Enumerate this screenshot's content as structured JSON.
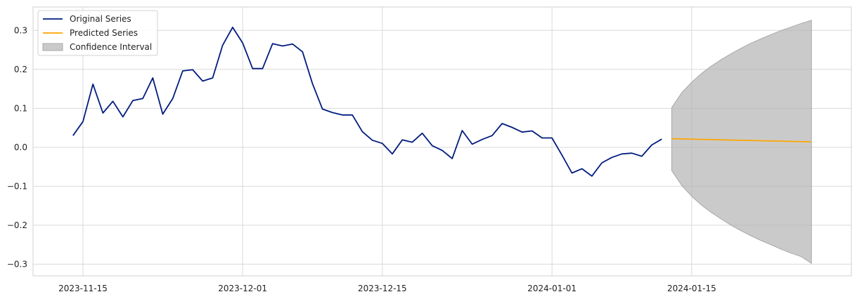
{
  "chart_data": {
    "type": "line",
    "title": "",
    "xlabel": "",
    "ylabel": "",
    "xlim": [
      "2023-11-10",
      "2024-01-31"
    ],
    "ylim": [
      -0.33,
      0.36
    ],
    "grid": true,
    "legend_position": "top-left",
    "x_ticks": [
      "2023-11-15",
      "2023-12-01",
      "2023-12-15",
      "2024-01-01",
      "2024-01-15"
    ],
    "y_ticks": [
      0.3,
      0.2,
      0.1,
      0.0,
      -0.1,
      -0.2,
      -0.3
    ],
    "y_tick_labels": [
      "0.3",
      "0.2",
      "0.1",
      "0.0",
      "−0.1",
      "−0.2",
      "−0.3"
    ],
    "series": [
      {
        "name": "Original Series",
        "color": "#001c7f",
        "x": [
          "2023-11-14",
          "2023-11-15",
          "2023-11-16",
          "2023-11-17",
          "2023-11-18",
          "2023-11-19",
          "2023-11-20",
          "2023-11-21",
          "2023-11-22",
          "2023-11-23",
          "2023-11-24",
          "2023-11-25",
          "2023-11-26",
          "2023-11-27",
          "2023-11-28",
          "2023-11-29",
          "2023-11-30",
          "2023-12-01",
          "2023-12-02",
          "2023-12-03",
          "2023-12-04",
          "2023-12-05",
          "2023-12-06",
          "2023-12-07",
          "2023-12-08",
          "2023-12-09",
          "2023-12-10",
          "2023-12-11",
          "2023-12-12",
          "2023-12-13",
          "2023-12-14",
          "2023-12-15",
          "2023-12-16",
          "2023-12-17",
          "2023-12-18",
          "2023-12-19",
          "2023-12-20",
          "2023-12-21",
          "2023-12-22",
          "2023-12-23",
          "2023-12-24",
          "2023-12-25",
          "2023-12-26",
          "2023-12-27",
          "2023-12-28",
          "2023-12-29",
          "2023-12-30",
          "2023-12-31",
          "2024-01-01",
          "2024-01-02",
          "2024-01-03",
          "2024-01-04",
          "2024-01-05",
          "2024-01-06",
          "2024-01-07",
          "2024-01-08",
          "2024-01-09",
          "2024-01-10",
          "2024-01-11",
          "2024-01-12"
        ],
        "values": [
          0.03,
          0.066,
          0.162,
          0.088,
          0.118,
          0.078,
          0.12,
          0.125,
          0.178,
          0.085,
          0.125,
          0.196,
          0.199,
          0.17,
          0.178,
          0.262,
          0.308,
          0.268,
          0.202,
          0.202,
          0.266,
          0.26,
          0.265,
          0.245,
          0.163,
          0.098,
          0.089,
          0.083,
          0.083,
          0.04,
          0.018,
          0.01,
          -0.017,
          0.019,
          0.013,
          0.036,
          0.004,
          -0.008,
          -0.029,
          0.043,
          0.008,
          0.02,
          0.03,
          0.061,
          0.051,
          0.039,
          0.042,
          0.024,
          0.024,
          -0.02,
          -0.066,
          -0.055,
          -0.074,
          -0.04,
          -0.026,
          -0.017,
          -0.015,
          -0.023,
          0.006,
          0.021
        ]
      },
      {
        "name": "Predicted Series",
        "color": "#ffa500",
        "x": [
          "2024-01-13",
          "2024-01-27"
        ],
        "values": [
          0.022,
          0.014
        ]
      }
    ],
    "confidence_interval": {
      "name": "Confidence Interval",
      "color": "#b3b3b3",
      "x": [
        "2024-01-13",
        "2024-01-14",
        "2024-01-15",
        "2024-01-16",
        "2024-01-17",
        "2024-01-18",
        "2024-01-19",
        "2024-01-20",
        "2024-01-21",
        "2024-01-22",
        "2024-01-23",
        "2024-01-24",
        "2024-01-25",
        "2024-01-26",
        "2024-01-27"
      ],
      "upper": [
        0.102,
        0.14,
        0.167,
        0.19,
        0.209,
        0.226,
        0.241,
        0.255,
        0.268,
        0.279,
        0.29,
        0.3,
        0.309,
        0.318,
        0.326
      ],
      "lower": [
        -0.06,
        -0.098,
        -0.126,
        -0.149,
        -0.168,
        -0.185,
        -0.201,
        -0.215,
        -0.228,
        -0.24,
        -0.251,
        -0.262,
        -0.272,
        -0.281,
        -0.298
      ]
    }
  }
}
